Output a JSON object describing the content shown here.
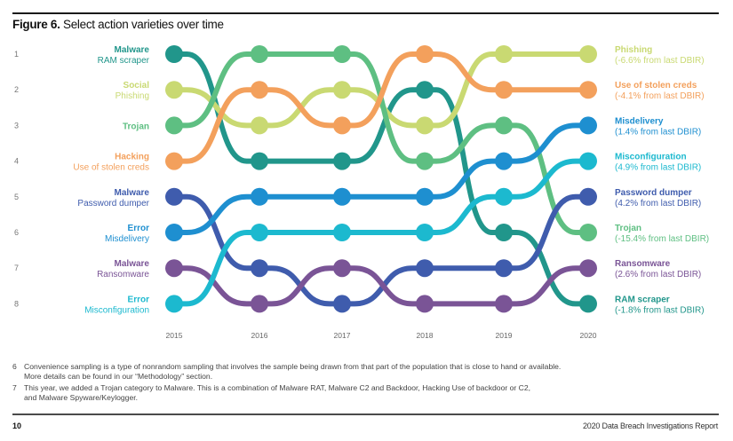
{
  "figure": {
    "label": "Figure 6.",
    "title": "Select action varieties over time"
  },
  "chart_data": {
    "type": "bump",
    "title": "Select action varieties over time",
    "x": [
      "2015",
      "2016",
      "2017",
      "2018",
      "2019",
      "2020"
    ],
    "rank_labels": [
      "1",
      "2",
      "3",
      "4",
      "5",
      "6",
      "7",
      "8"
    ],
    "y_axis": "rank (1 = top)",
    "series": [
      {
        "id": "ram-scraper",
        "category": "Malware",
        "name": "RAM scraper",
        "color": "#21968b",
        "ranks": [
          1,
          4,
          4,
          2,
          6,
          8
        ],
        "end_label": "RAM scraper",
        "change": "(-1.8% from last DBIR)"
      },
      {
        "id": "phishing",
        "category": "Social",
        "name": "Phishing",
        "color": "#c9d972",
        "ranks": [
          2,
          3,
          2,
          3,
          1,
          1
        ],
        "end_label": "Phishing",
        "change": "(-6.6% from last DBIR)"
      },
      {
        "id": "trojan",
        "category": "Trojan",
        "name": "",
        "color": "#5ebf82",
        "ranks": [
          3,
          1,
          1,
          4,
          3,
          6
        ],
        "end_label": "Trojan",
        "change": "(-15.4% from last DBIR)"
      },
      {
        "id": "stolen-creds",
        "category": "Hacking",
        "name": "Use of stolen creds",
        "color": "#f3a05c",
        "ranks": [
          4,
          2,
          3,
          1,
          2,
          2
        ],
        "end_label": "Use of stolen creds",
        "change": "(-4.1% from last DBIR)"
      },
      {
        "id": "password-dumper",
        "category": "Malware",
        "name": "Password dumper",
        "color": "#3f5cad",
        "ranks": [
          5,
          7,
          8,
          7,
          7,
          5
        ],
        "end_label": "Password dumper",
        "change": "(4.2% from last DBIR)"
      },
      {
        "id": "misdelivery",
        "category": "Error",
        "name": "Misdelivery",
        "color": "#1e8fd0",
        "ranks": [
          6,
          5,
          5,
          5,
          4,
          3
        ],
        "end_label": "Misdelivery",
        "change": "(1.4% from last DBIR)"
      },
      {
        "id": "ransomware",
        "category": "Malware",
        "name": "Ransomware",
        "color": "#7a5496",
        "ranks": [
          7,
          8,
          7,
          8,
          8,
          7
        ],
        "end_label": "Ransomware",
        "change": "(2.6% from last DBIR)"
      },
      {
        "id": "misconfiguration",
        "category": "Error",
        "name": "Misconfiguration",
        "color": "#1cb9cf",
        "ranks": [
          8,
          6,
          6,
          6,
          5,
          4
        ],
        "end_label": "Misconfiguration",
        "change": "(4.9% from last DBIR)"
      }
    ]
  },
  "footnotes": [
    {
      "num": "6",
      "text": "Convenience sampling is a type of nonrandom sampling that involves the sample being drawn from that part of the population that is close to hand or available.",
      "text2": "More details can be found in our “Methodology” section."
    },
    {
      "num": "7",
      "text": "This year, we added a Trojan category to Malware. This is a combination of Malware RAT, Malware C2 and Backdoor, Hacking Use of backdoor or C2,",
      "text2": "and Malware Spyware/Keylogger."
    }
  ],
  "footer": {
    "page_number": "10",
    "report_name": "2020 Data Breach Investigations Report"
  }
}
